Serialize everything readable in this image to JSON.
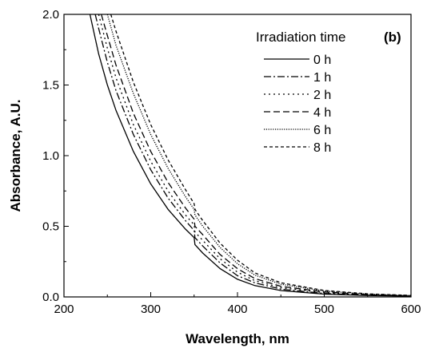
{
  "chart_data": {
    "type": "line",
    "panel_label": "(b)",
    "xlabel": "Wavelength, nm",
    "ylabel": "Absorbance, A.U.",
    "xlim": [
      200,
      600
    ],
    "ylim": [
      0.0,
      2.0
    ],
    "x_ticks": [
      200,
      300,
      400,
      500,
      600
    ],
    "x_tick_labels": [
      "200",
      "300",
      "400",
      "500",
      "600"
    ],
    "y_ticks": [
      0.0,
      0.5,
      1.0,
      1.5,
      2.0
    ],
    "y_tick_labels": [
      "0.0",
      "0.5",
      "1.0",
      "1.5",
      "2.0"
    ],
    "grid": false,
    "legend": {
      "title": "Irradiation time",
      "placement": "top-right"
    },
    "series": [
      {
        "name": "0 h",
        "dash": "solid",
        "x": [
          230,
          240,
          250,
          260,
          280,
          300,
          320,
          340,
          350,
          351,
          360,
          380,
          400,
          420,
          450,
          500,
          550,
          600
        ],
        "y": [
          2.0,
          1.72,
          1.5,
          1.32,
          1.03,
          0.8,
          0.62,
          0.48,
          0.42,
          0.37,
          0.31,
          0.2,
          0.125,
          0.08,
          0.045,
          0.02,
          0.01,
          0.005
        ]
      },
      {
        "name": "1 h",
        "dash": "dashdot",
        "x": [
          236,
          240,
          250,
          260,
          280,
          300,
          320,
          340,
          350,
          351,
          360,
          380,
          400,
          420,
          450,
          500,
          550,
          600
        ],
        "y": [
          2.0,
          1.9,
          1.66,
          1.46,
          1.15,
          0.9,
          0.7,
          0.54,
          0.47,
          0.42,
          0.36,
          0.24,
          0.15,
          0.1,
          0.055,
          0.025,
          0.012,
          0.006
        ]
      },
      {
        "name": "2 h",
        "dash": "dotted",
        "x": [
          240,
          250,
          260,
          280,
          300,
          320,
          340,
          350,
          351,
          360,
          380,
          400,
          420,
          450,
          500,
          550,
          600
        ],
        "y": [
          2.0,
          1.76,
          1.55,
          1.22,
          0.96,
          0.75,
          0.58,
          0.51,
          0.46,
          0.4,
          0.27,
          0.175,
          0.115,
          0.065,
          0.03,
          0.014,
          0.007
        ]
      },
      {
        "name": "4 h",
        "dash": "dashed",
        "x": [
          243,
          250,
          260,
          280,
          300,
          320,
          340,
          350,
          351,
          360,
          380,
          400,
          420,
          450,
          500,
          550,
          600
        ],
        "y": [
          2.0,
          1.85,
          1.64,
          1.3,
          1.03,
          0.81,
          0.63,
          0.55,
          0.5,
          0.44,
          0.3,
          0.2,
          0.13,
          0.075,
          0.035,
          0.016,
          0.008
        ]
      },
      {
        "name": "6 h",
        "dash": "fine-dotted",
        "x": [
          250,
          260,
          280,
          300,
          320,
          340,
          350,
          351,
          360,
          380,
          400,
          420,
          450,
          500,
          550,
          600
        ],
        "y": [
          2.0,
          1.78,
          1.44,
          1.15,
          0.91,
          0.71,
          0.62,
          0.58,
          0.5,
          0.35,
          0.235,
          0.155,
          0.09,
          0.042,
          0.02,
          0.01
        ]
      },
      {
        "name": "8 h",
        "dash": "short-dashed",
        "x": [
          254,
          260,
          280,
          300,
          320,
          340,
          350,
          351,
          360,
          380,
          400,
          420,
          450,
          500,
          550,
          600
        ],
        "y": [
          2.0,
          1.88,
          1.52,
          1.22,
          0.97,
          0.76,
          0.66,
          0.62,
          0.54,
          0.38,
          0.26,
          0.17,
          0.1,
          0.046,
          0.022,
          0.011
        ]
      }
    ]
  }
}
